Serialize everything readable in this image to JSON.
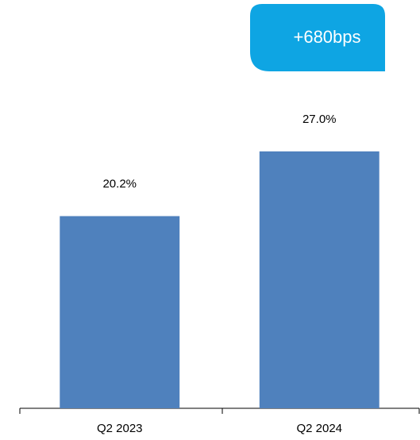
{
  "chart_data": {
    "type": "bar",
    "annotation": "+680bps",
    "categories": [
      "Q2 2023",
      "Q2 2024"
    ],
    "values": [
      20.2,
      27.0
    ],
    "value_labels": [
      "20.2%",
      "27.0%"
    ],
    "color": "#4f81bd",
    "ylim": [
      0,
      30
    ]
  }
}
